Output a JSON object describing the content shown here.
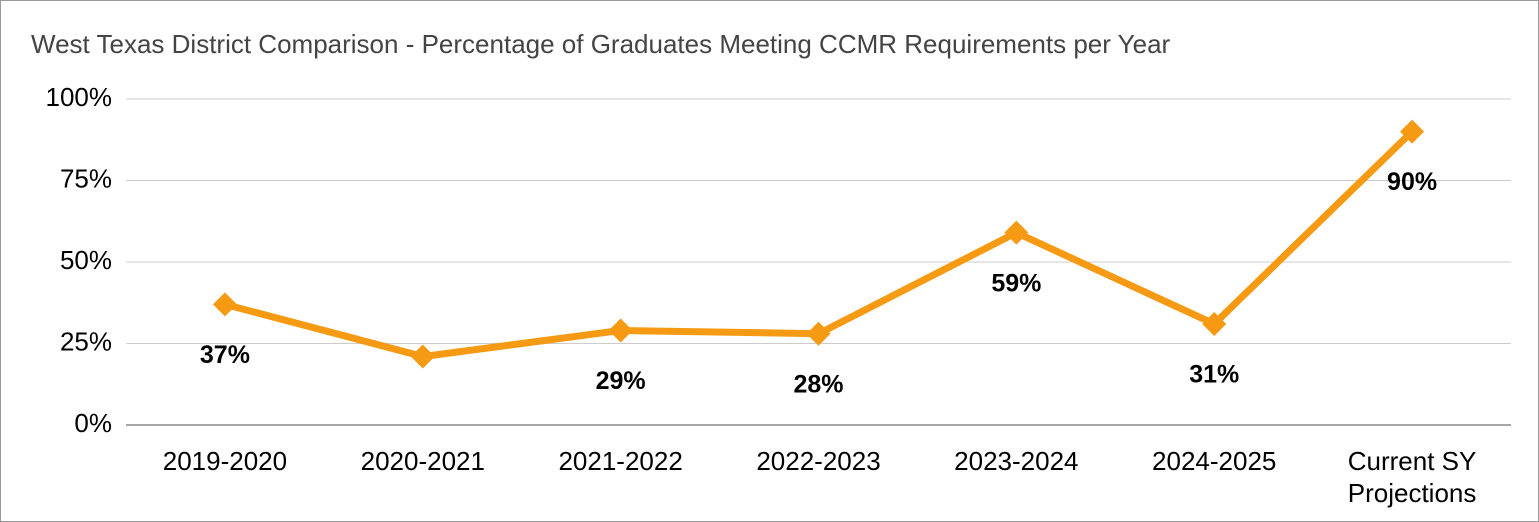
{
  "chart_data": {
    "type": "line",
    "title": "West Texas District Comparison - Percentage of Graduates Meeting CCMR Requirements per Year",
    "categories": [
      "2019-2020",
      "2020-2021",
      "2021-2022",
      "2022-2023",
      "2023-2024",
      "2024-2025",
      "Current SY Projections"
    ],
    "series": [
      {
        "color": "#f59a12",
        "values": [
          37,
          21,
          29,
          28,
          59,
          31,
          90
        ],
        "value_labels": [
          "37%",
          null,
          "29%",
          "28%",
          "59%",
          "31%",
          "90%"
        ]
      }
    ],
    "ylim": [
      0,
      100
    ],
    "yticks": [
      {
        "value": 0,
        "label": "0%"
      },
      {
        "value": 25,
        "label": "25%"
      },
      {
        "value": 50,
        "label": "50%"
      },
      {
        "value": 75,
        "label": "75%"
      },
      {
        "value": 100,
        "label": "100%"
      }
    ],
    "grid": true
  }
}
